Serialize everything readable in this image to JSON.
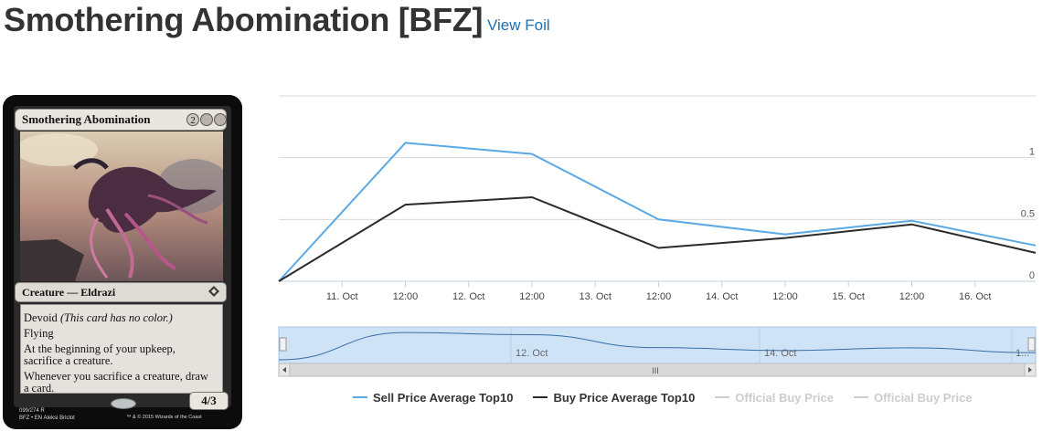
{
  "header": {
    "title": "Smothering Abomination [BFZ]",
    "foil_link": "View Foil"
  },
  "card": {
    "name": "Smothering Abomination",
    "mana_cost": [
      "2",
      "",
      ""
    ],
    "type_line": "Creature — Eldrazi",
    "rules_text": {
      "devoid": "Devoid",
      "devoid_reminder": "(This card has no color.)",
      "flying": "Flying",
      "upkeep": "At the beginning of your upkeep, sacrifice a creature.",
      "sacrifice": "Whenever you sacrifice a creature, draw a card."
    },
    "power_toughness": "4/3",
    "collector_info": "099/274 R",
    "set_info": "BFZ • EN",
    "artist": "Aleksi Briclot",
    "copyright": "™ & © 2015 Wizards of the Coast"
  },
  "colors": {
    "sell": "#5aa9e6",
    "buy": "#2b2b2b",
    "inactive": "#cccccc",
    "navigator_fill": "#cfe3f7",
    "link": "#1f6fb2"
  },
  "chart_data": {
    "type": "line",
    "x_tick_labels": [
      "11. Oct",
      "12:00",
      "12. Oct",
      "12:00",
      "13. Oct",
      "12:00",
      "14. Oct",
      "12:00",
      "15. Oct",
      "12:00",
      "16. Oct"
    ],
    "y_tick_labels": [
      "0",
      "0.5",
      "1"
    ],
    "ylim": [
      0,
      1.5
    ],
    "series": [
      {
        "name": "Sell Price Average Top10",
        "visible": true,
        "x": [
          "10 Oct 12:00",
          "11 Oct 12:00",
          "12 Oct 12:00",
          "13 Oct 12:00",
          "14 Oct 12:00",
          "15 Oct 12:00",
          "16 Oct 12:00"
        ],
        "values": [
          0.0,
          1.12,
          1.03,
          0.5,
          0.38,
          0.49,
          0.29
        ]
      },
      {
        "name": "Buy Price Average Top10",
        "visible": true,
        "x": [
          "10 Oct 12:00",
          "11 Oct 12:00",
          "12 Oct 12:00",
          "13 Oct 12:00",
          "14 Oct 12:00",
          "15 Oct 12:00",
          "16 Oct 12:00"
        ],
        "values": [
          0.0,
          0.62,
          0.68,
          0.27,
          0.35,
          0.46,
          0.23
        ]
      },
      {
        "name": "Official Buy Price",
        "visible": false,
        "values": []
      },
      {
        "name": "Official Buy Price",
        "visible": false,
        "values": []
      }
    ],
    "navigator": {
      "labels": [
        "12. Oct",
        "14. Oct",
        "1..."
      ],
      "scrollbar_grip": "III"
    },
    "legend_position": "bottom",
    "grid": true
  }
}
